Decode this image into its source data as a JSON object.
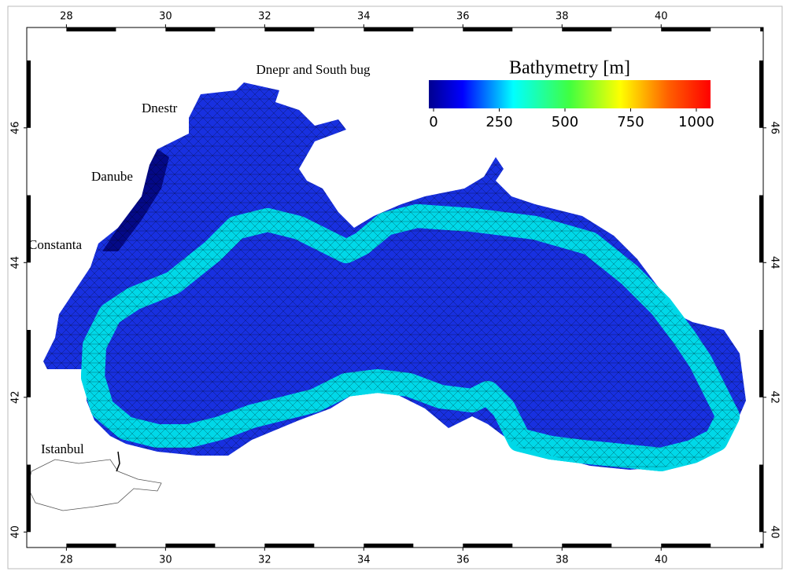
{
  "map": {
    "xlim": [
      27.2,
      42.06
    ],
    "ylim": [
      39.77,
      47.49
    ],
    "xticks": [
      28,
      30,
      32,
      34,
      36,
      38,
      40
    ],
    "yticks": [
      40,
      42,
      44,
      46
    ],
    "colorbar": {
      "title": "Bathymetry [m]",
      "lim": [
        -18,
        1054
      ],
      "ticks": [
        0,
        250,
        500,
        750,
        1000
      ]
    },
    "labels": [
      "Dnepr and South bug",
      "Dnestr",
      "Danube",
      "Constanta",
      "Istanbul"
    ]
  }
}
